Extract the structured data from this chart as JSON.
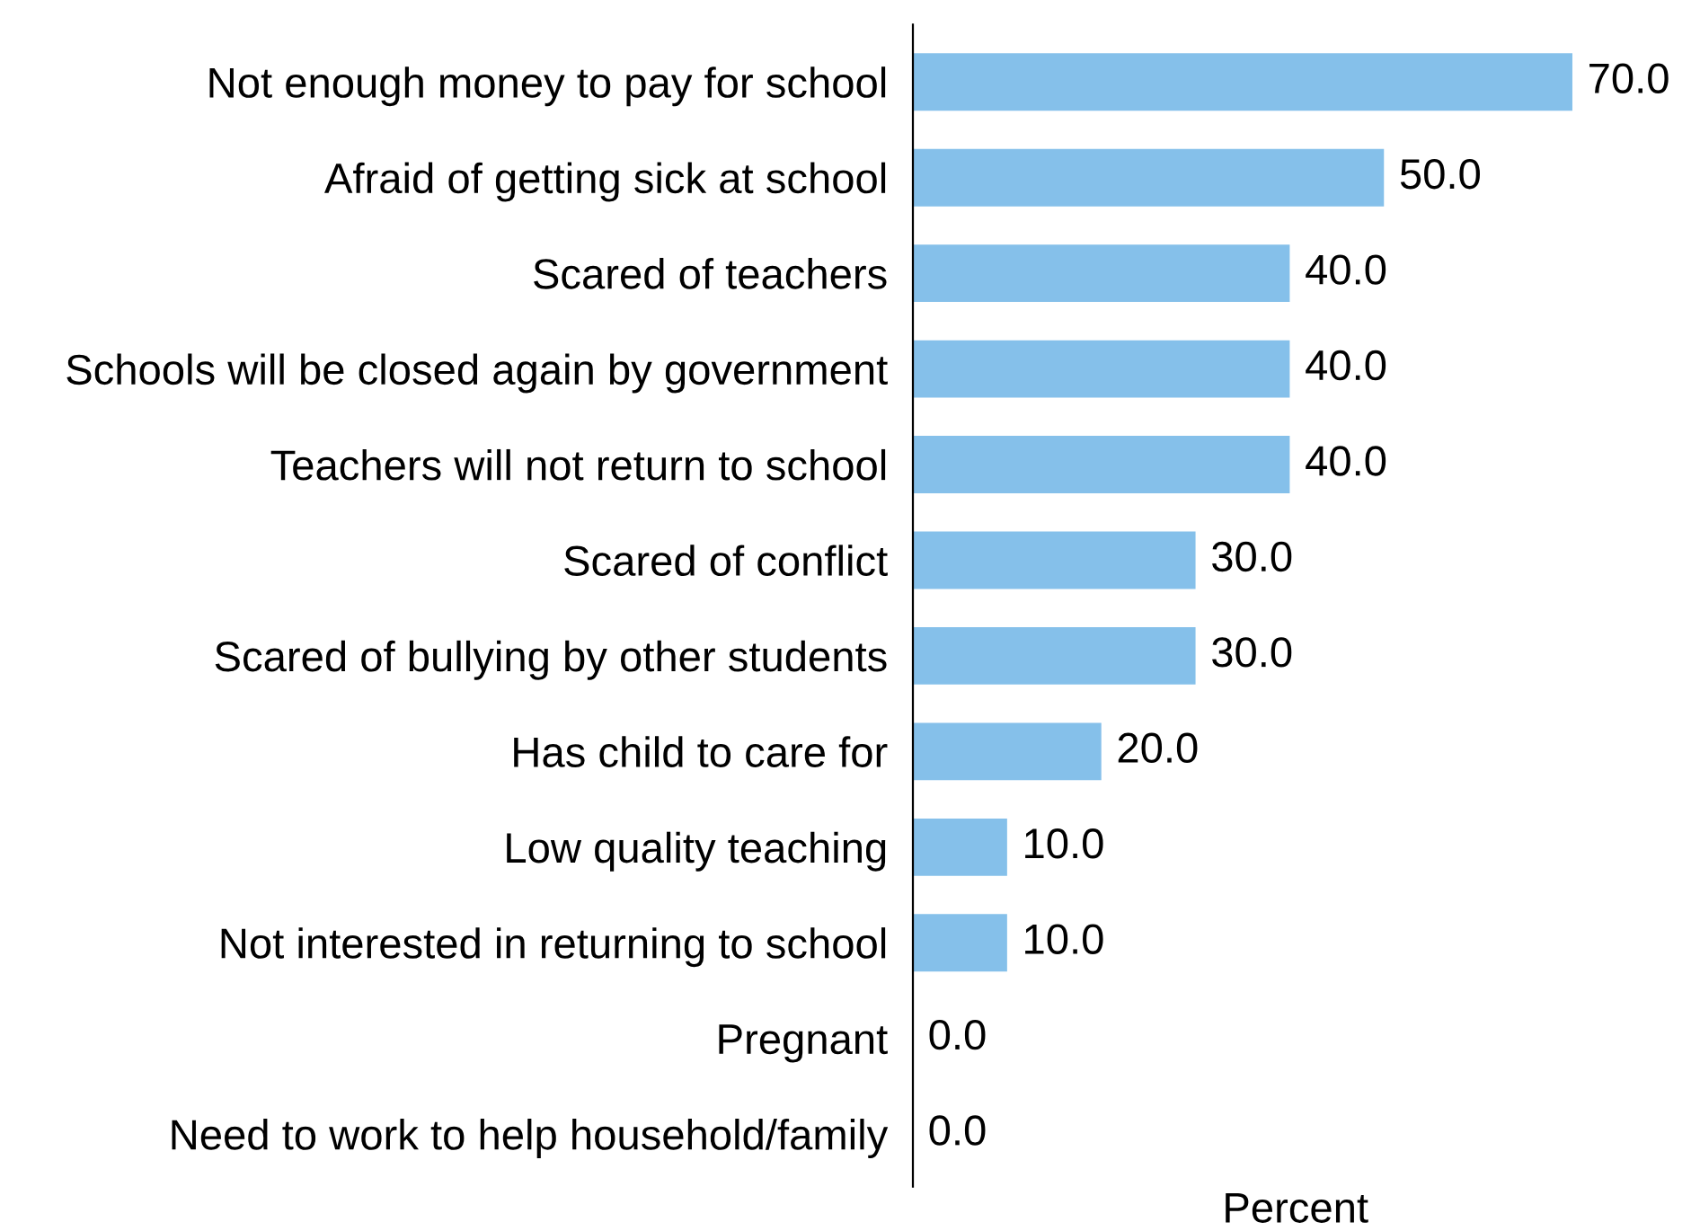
{
  "chart_data": {
    "type": "bar",
    "orientation": "horizontal",
    "xlabel": "Percent",
    "categories": [
      "Not enough money to pay for school",
      "Afraid of getting sick at school",
      "Scared of teachers",
      "Schools will be closed again by government",
      "Teachers will not return to school",
      "Scared of conflict",
      "Scared of bullying by other students",
      "Has child to care for",
      "Low quality teaching",
      "Not interested in returning to school",
      "Pregnant",
      "Need to work to help household/family"
    ],
    "values": [
      70,
      50,
      40,
      40,
      40,
      30,
      30,
      20,
      10,
      10,
      0,
      0
    ],
    "value_labels": [
      "70.0",
      "50.0",
      "40.0",
      "40.0",
      "40.0",
      "30.0",
      "30.0",
      "20.0",
      "10.0",
      "10.0",
      "0.0",
      "0.0"
    ],
    "color": "#85c0ea",
    "tick_labels": "y",
    "grid": false
  }
}
